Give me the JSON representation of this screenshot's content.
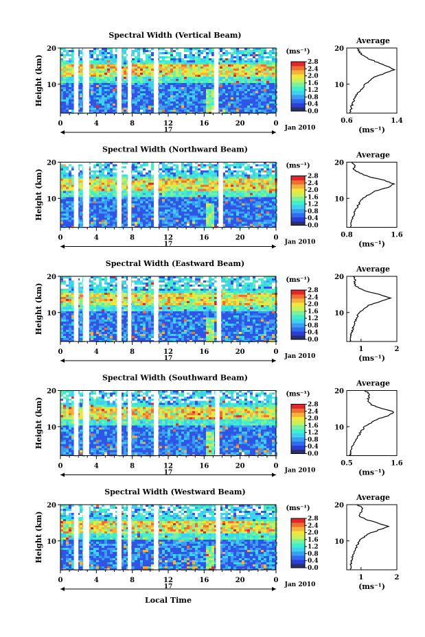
{
  "figure": {
    "y_axis_label": "Height (km)",
    "x_axis_label": "Local Time",
    "date_label": "Jan 2010",
    "day_label": "17",
    "x_ticks": [
      "0",
      "4",
      "8",
      "12",
      "16",
      "20",
      "0"
    ],
    "y_ticks": [
      "10",
      "20"
    ],
    "colorbar_unit": "(ms⁻¹)",
    "colorbar_ticks": [
      "0.0",
      "0.4",
      "0.8",
      "1.2",
      "1.6",
      "2.0",
      "2.4",
      "2.8"
    ],
    "average_title": "Average",
    "average_unit": "(ms⁻¹)",
    "colorbar_colors": [
      "#2a2f6e",
      "#2b3fd6",
      "#2f6cf2",
      "#3a9ff2",
      "#3fd2f0",
      "#3ff0c8",
      "#7cf09a",
      "#c8f05a",
      "#f0e63c",
      "#f5b13c",
      "#f06e30",
      "#e0282a"
    ]
  },
  "chart_data": [
    {
      "type": "heatmap",
      "title": "Spectral Width (Vertical Beam)",
      "xlabel": "Local Time",
      "ylabel": "Height (km)",
      "xlim": [
        0,
        24
      ],
      "ylim": [
        2,
        20
      ],
      "clim": [
        0,
        2.8
      ],
      "data_gaps_hours": [
        [
          1.5,
          2.0
        ],
        [
          2.5,
          3.2
        ],
        [
          6.3,
          6.8
        ],
        [
          7.5,
          7.9
        ],
        [
          10.4,
          10.9
        ],
        [
          17.1,
          17.6
        ]
      ],
      "average_profile": {
        "xlim": [
          0.6,
          1.4
        ],
        "xticks": [
          "0.6",
          "1.4"
        ],
        "height_km": [
          2,
          4,
          6,
          8,
          10,
          12,
          13,
          14,
          15,
          16,
          17,
          18,
          19,
          20
        ],
        "width": [
          0.66,
          0.68,
          0.72,
          0.8,
          0.9,
          1.05,
          1.2,
          1.35,
          1.25,
          1.1,
          0.95,
          0.85,
          0.8,
          0.78
        ]
      }
    },
    {
      "type": "heatmap",
      "title": "Spectral Width (Northward Beam)",
      "xlabel": "Local Time",
      "ylabel": "Height (km)",
      "xlim": [
        0,
        24
      ],
      "ylim": [
        2,
        20
      ],
      "clim": [
        0,
        2.8
      ],
      "data_gaps_hours": [
        [
          1.5,
          2.0
        ],
        [
          2.5,
          3.2
        ],
        [
          6.3,
          6.8
        ],
        [
          7.5,
          7.9
        ],
        [
          10.4,
          10.9
        ],
        [
          17.6,
          18.1
        ]
      ],
      "average_profile": {
        "xlim": [
          0.8,
          1.6
        ],
        "xticks": [
          "0.8",
          "1.6"
        ],
        "height_km": [
          2,
          4,
          6,
          8,
          10,
          12,
          13,
          14,
          15,
          16,
          17,
          18,
          19,
          20
        ],
        "width": [
          0.86,
          0.88,
          0.92,
          0.98,
          1.05,
          1.25,
          1.45,
          1.55,
          1.4,
          1.15,
          1.0,
          0.9,
          0.95,
          0.88
        ]
      }
    },
    {
      "type": "heatmap",
      "title": "Spectral Width (Eastward Beam)",
      "xlabel": "Local Time",
      "ylabel": "Height (km)",
      "xlim": [
        0,
        24
      ],
      "ylim": [
        2,
        20
      ],
      "clim": [
        0,
        2.8
      ],
      "data_gaps_hours": [
        [
          1.5,
          2.0
        ],
        [
          2.5,
          3.2
        ],
        [
          6.3,
          6.8
        ],
        [
          7.5,
          7.9
        ],
        [
          10.4,
          10.9
        ],
        [
          17.4,
          17.9
        ]
      ],
      "average_profile": {
        "xlim": [
          0.6,
          2.0
        ],
        "xticks": [
          "1",
          "2"
        ],
        "height_km": [
          2,
          4,
          6,
          8,
          10,
          12,
          13,
          14,
          15,
          16,
          17,
          18,
          19,
          20
        ],
        "width": [
          0.7,
          0.72,
          0.78,
          0.85,
          0.95,
          1.2,
          1.55,
          1.8,
          1.5,
          1.1,
          0.9,
          0.8,
          0.85,
          0.78
        ]
      }
    },
    {
      "type": "heatmap",
      "title": "Spectral Width (Southward Beam)",
      "xlabel": "Local Time",
      "ylabel": "Height (km)",
      "xlim": [
        0,
        24
      ],
      "ylim": [
        2,
        20
      ],
      "clim": [
        0,
        2.8
      ],
      "data_gaps_hours": [
        [
          1.5,
          2.0
        ],
        [
          2.5,
          3.2
        ],
        [
          6.3,
          6.8
        ],
        [
          7.5,
          7.9
        ],
        [
          10.4,
          10.9
        ],
        [
          17.2,
          17.7
        ]
      ],
      "average_profile": {
        "xlim": [
          0.5,
          1.6
        ],
        "xticks": [
          "0.5",
          "1.6"
        ],
        "height_km": [
          2,
          4,
          6,
          8,
          10,
          12,
          13,
          14,
          15,
          16,
          17,
          18,
          19,
          20
        ],
        "width": [
          0.58,
          0.6,
          0.68,
          0.78,
          0.9,
          1.15,
          1.4,
          1.55,
          1.3,
          1.05,
          0.95,
          0.98,
          1.0,
          0.9
        ]
      }
    },
    {
      "type": "heatmap",
      "title": "Spectral Width (Westward Beam)",
      "xlabel": "Local Time",
      "ylabel": "Height (km)",
      "xlim": [
        0,
        24
      ],
      "ylim": [
        2,
        20
      ],
      "clim": [
        0,
        2.8
      ],
      "data_gaps_hours": [
        [
          1.5,
          2.0
        ],
        [
          2.5,
          3.2
        ],
        [
          6.3,
          6.8
        ],
        [
          7.5,
          7.9
        ],
        [
          10.4,
          10.9
        ],
        [
          17.3,
          17.8
        ]
      ],
      "average_profile": {
        "xlim": [
          0.6,
          2.0
        ],
        "xticks": [
          "1",
          "2"
        ],
        "height_km": [
          2,
          4,
          6,
          8,
          10,
          12,
          13,
          14,
          15,
          16,
          17,
          18,
          19,
          20
        ],
        "width": [
          0.7,
          0.72,
          0.78,
          0.85,
          0.95,
          1.2,
          1.5,
          1.75,
          1.45,
          1.1,
          0.95,
          1.0,
          1.05,
          0.9
        ]
      }
    }
  ]
}
